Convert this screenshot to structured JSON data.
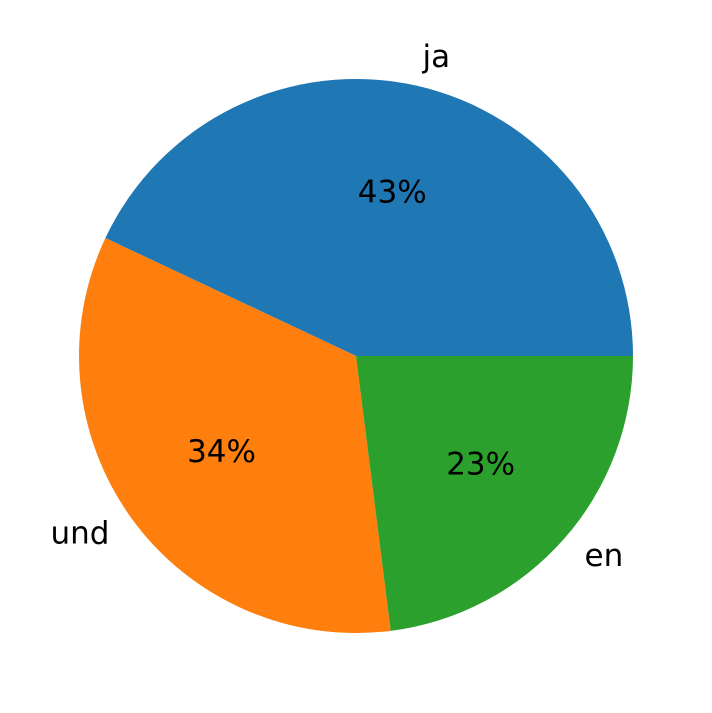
{
  "chart_data": {
    "type": "pie",
    "categories": [
      "ja",
      "und",
      "en"
    ],
    "values": [
      43,
      34,
      23
    ],
    "value_labels": [
      "43%",
      "34%",
      "23%"
    ],
    "colors": [
      "#1f77b4",
      "#ff7f0e",
      "#2ca02c"
    ]
  }
}
